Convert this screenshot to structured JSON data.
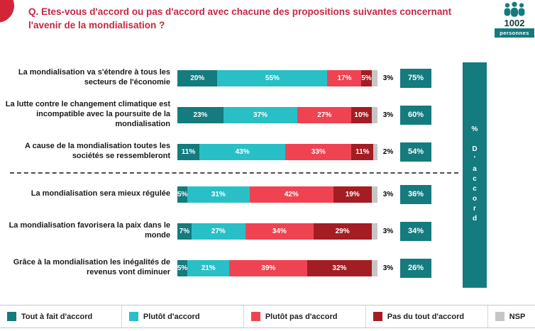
{
  "header": {
    "title_line1": "Q. Etes-vous d'accord ou pas d'accord avec chacune des propositions suivantes concernant",
    "title_line2": "l'avenir de la mondialisation ?",
    "sample_count": "1002",
    "sample_label": "personnes"
  },
  "chart_data": {
    "type": "bar",
    "variant": "horizontal-stacked",
    "unit": "%",
    "series_labels": [
      "Tout à fait d'accord",
      "Plutôt d'accord",
      "Plutôt pas d'accord",
      "Pas du tout d'accord",
      "NSP"
    ],
    "segment_colors": [
      "#147b7e",
      "#29bfc6",
      "#ef4351",
      "#a31d22",
      "#c6c6c6"
    ],
    "accent_color": "#147b7e",
    "right_axis_label": "% D'accord",
    "rows": [
      {
        "label": "La mondialisation va s'étendre à tous les secteurs de l'économie",
        "values": [
          20,
          55,
          17,
          5,
          3
        ],
        "agree_total": "75%"
      },
      {
        "label": "La lutte contre le changement climatique est incompatible avec la poursuite de la mondialisation",
        "values": [
          23,
          37,
          27,
          10,
          3
        ],
        "agree_total": "60%"
      },
      {
        "label": "A cause de la mondialisation toutes les sociétés se ressembleront",
        "values": [
          11,
          43,
          33,
          11,
          2
        ],
        "agree_total": "54%",
        "divider_after": true
      },
      {
        "label": "La mondialisation sera mieux régulée",
        "values": [
          5,
          31,
          42,
          19,
          3
        ],
        "agree_total": "36%"
      },
      {
        "label": "La mondialisation favorisera la paix dans le monde",
        "values": [
          7,
          27,
          34,
          29,
          3
        ],
        "agree_total": "34%"
      },
      {
        "label": "Grâce à la mondialisation les inégalités de revenus vont diminuer",
        "values": [
          5,
          21,
          39,
          32,
          3
        ],
        "agree_total": "26%"
      }
    ]
  },
  "legend": {
    "items": [
      {
        "label": "Tout à fait d'accord",
        "color": "#147b7e"
      },
      {
        "label": "Plutôt d'accord",
        "color": "#29bfc6"
      },
      {
        "label": "Plutôt pas d'accord",
        "color": "#ef4351"
      },
      {
        "label": "Pas du tout d'accord",
        "color": "#a31d22"
      },
      {
        "label": "NSP",
        "color": "#c6c6c6"
      }
    ]
  },
  "colors": {
    "title_red": "#c62641",
    "circle_red": "#d32438"
  }
}
